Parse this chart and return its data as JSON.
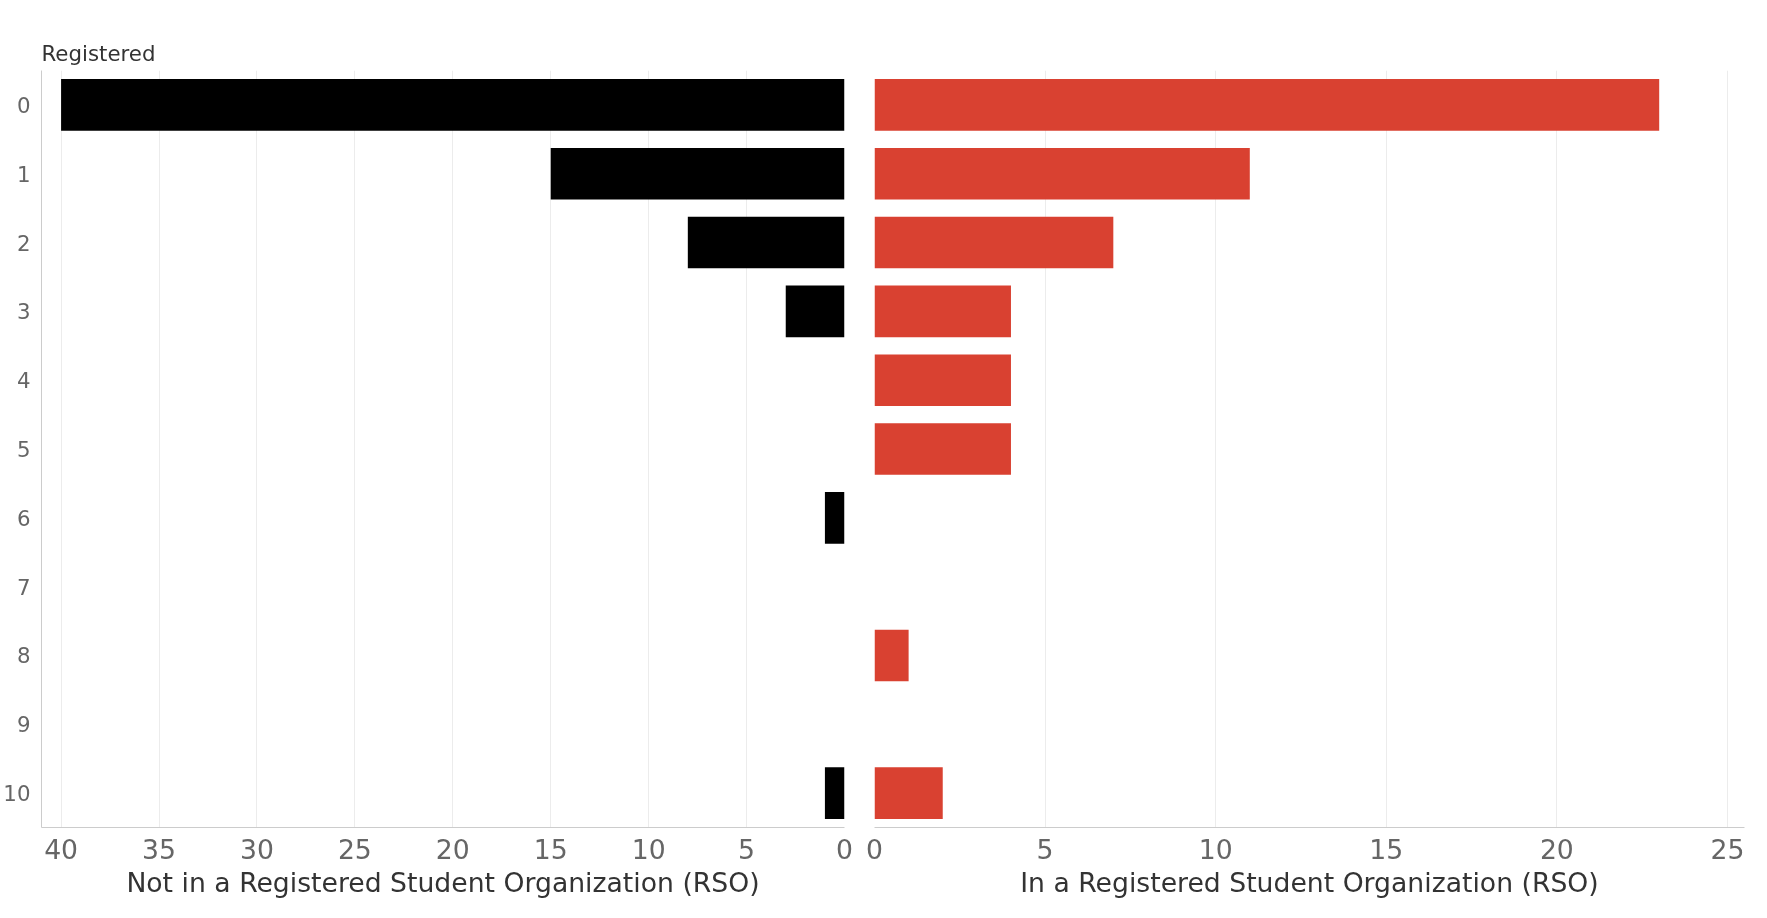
{
  "chart_data": [
    {
      "type": "bar",
      "orientation": "horizontal",
      "ylabel": "Registered",
      "xlabel": "Not in a Registered Student Organization (RSO)",
      "categories": [
        "0",
        "1",
        "2",
        "3",
        "4",
        "5",
        "6",
        "7",
        "8",
        "9",
        "10"
      ],
      "values": [
        40,
        15,
        8,
        3,
        null,
        null,
        1,
        null,
        null,
        null,
        1
      ],
      "color": "#000000",
      "xlim": [
        41,
        0
      ],
      "xticks": [
        40,
        35,
        30,
        25,
        20,
        15,
        10,
        5,
        0
      ],
      "grid": "x"
    },
    {
      "type": "bar",
      "orientation": "horizontal",
      "xlabel": "In a Registered Student Organization (RSO)",
      "categories": [
        "0",
        "1",
        "2",
        "3",
        "4",
        "5",
        "6",
        "7",
        "8",
        "9",
        "10"
      ],
      "values": [
        23,
        11,
        7,
        4,
        4,
        4,
        0,
        null,
        1,
        null,
        2
      ],
      "color": "#d94131",
      "xlim": [
        0,
        25.5
      ],
      "xticks": [
        0,
        5,
        10,
        15,
        20,
        25
      ],
      "grid": "x",
      "tick_labels": "x"
    }
  ]
}
